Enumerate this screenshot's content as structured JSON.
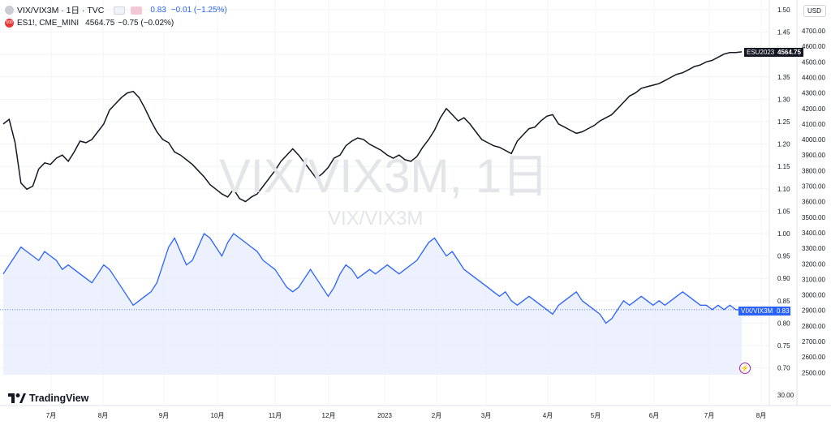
{
  "legend": {
    "main_symbol": "VIX/VIX3M · 1日 · TVC",
    "main_value": "0.83",
    "main_change": "−0.01 (−1.25%)",
    "compare_symbol": "ES1!, CME_MINI",
    "compare_value": "4564.75",
    "compare_change": "−0.75 (−0.02%)"
  },
  "currency_selector": "USD",
  "watermark": {
    "big": "VIX/VIX3M, 1日",
    "small": "VIX/VIX3M"
  },
  "labels": {
    "es_name": "ESU2023",
    "es_value": "4564.75",
    "vix_name": "VIX/VIX3M",
    "vix_value": "0.83"
  },
  "logo_text": "TradingView",
  "colors": {
    "es_line": "#131722",
    "vix_line": "#2962ff",
    "vix_fill": "#e3ebfd"
  },
  "chart_data": {
    "type": "line",
    "title": "",
    "x_ticks": [
      "7月",
      "8月",
      "9月",
      "10月",
      "11月",
      "12月",
      "2023",
      "2月",
      "3月",
      "4月",
      "5月",
      "6月",
      "7月",
      "8月"
    ],
    "y_left_axis": {
      "ticks": [
        "1.50",
        "1.45",
        "1.40",
        "1.35",
        "1.30",
        "1.25",
        "1.20",
        "1.15",
        "1.10",
        "1.05",
        "1.00",
        "0.95",
        "0.90",
        "0.85",
        "0.80",
        "0.75",
        "0.70"
      ],
      "range": [
        0.68,
        1.51
      ]
    },
    "y_right_axis": {
      "ticks": [
        "4700.00",
        "4600.00",
        "4500.00",
        "4400.00",
        "4300.00",
        "4200.00",
        "4100.00",
        "4000.00",
        "3900.00",
        "3800.00",
        "3700.00",
        "3600.00",
        "3500.00",
        "3400.00",
        "3300.00",
        "3200.00",
        "3100.00",
        "3000.00",
        "2900.00",
        "2800.00",
        "2700.00",
        "2600.00",
        "2500.00"
      ],
      "extra_tick": "30.00",
      "range": [
        2400,
        4750
      ]
    },
    "series": [
      {
        "name": "ES1!, CME_MINI",
        "axis": "right",
        "values": [
          4100,
          4130,
          3980,
          3720,
          3680,
          3700,
          3810,
          3850,
          3840,
          3880,
          3900,
          3860,
          3920,
          3990,
          3980,
          4000,
          4050,
          4100,
          4190,
          4230,
          4270,
          4300,
          4310,
          4270,
          4200,
          4120,
          4050,
          4000,
          3980,
          3920,
          3900,
          3870,
          3840,
          3800,
          3760,
          3710,
          3680,
          3650,
          3630,
          3680,
          3620,
          3600,
          3630,
          3650,
          3700,
          3750,
          3800,
          3860,
          3900,
          3940,
          3900,
          3850,
          3800,
          3750,
          3780,
          3820,
          3880,
          3900,
          3960,
          3990,
          4010,
          4000,
          3970,
          3950,
          3930,
          3900,
          3880,
          3900,
          3870,
          3860,
          3890,
          3950,
          4000,
          4060,
          4140,
          4200,
          4160,
          4120,
          4140,
          4100,
          4050,
          4000,
          3980,
          3960,
          3950,
          3930,
          3910,
          3990,
          4030,
          4070,
          4080,
          4120,
          4150,
          4160,
          4100,
          4080,
          4060,
          4040,
          4050,
          4070,
          4090,
          4120,
          4140,
          4160,
          4200,
          4240,
          4280,
          4300,
          4330,
          4340,
          4350,
          4360,
          4380,
          4400,
          4420,
          4430,
          4450,
          4470,
          4480,
          4500,
          4510,
          4530,
          4550,
          4560,
          4560,
          4565
        ]
      },
      {
        "name": "VIX/VIX3M",
        "axis": "left",
        "values": [
          0.91,
          0.93,
          0.95,
          0.97,
          0.96,
          0.95,
          0.94,
          0.96,
          0.95,
          0.94,
          0.92,
          0.93,
          0.92,
          0.91,
          0.9,
          0.89,
          0.91,
          0.93,
          0.92,
          0.9,
          0.88,
          0.86,
          0.84,
          0.85,
          0.86,
          0.87,
          0.89,
          0.93,
          0.97,
          0.99,
          0.96,
          0.93,
          0.94,
          0.97,
          1.0,
          0.99,
          0.97,
          0.95,
          0.98,
          1.0,
          0.99,
          0.98,
          0.97,
          0.96,
          0.94,
          0.93,
          0.92,
          0.9,
          0.88,
          0.87,
          0.88,
          0.9,
          0.92,
          0.9,
          0.88,
          0.86,
          0.88,
          0.91,
          0.93,
          0.92,
          0.9,
          0.91,
          0.92,
          0.91,
          0.92,
          0.93,
          0.92,
          0.91,
          0.92,
          0.93,
          0.94,
          0.96,
          0.98,
          0.99,
          0.97,
          0.95,
          0.96,
          0.94,
          0.92,
          0.91,
          0.9,
          0.89,
          0.88,
          0.87,
          0.86,
          0.87,
          0.85,
          0.84,
          0.85,
          0.86,
          0.85,
          0.84,
          0.83,
          0.82,
          0.84,
          0.85,
          0.86,
          0.87,
          0.85,
          0.84,
          0.83,
          0.82,
          0.8,
          0.81,
          0.83,
          0.85,
          0.84,
          0.85,
          0.86,
          0.85,
          0.84,
          0.85,
          0.84,
          0.85,
          0.86,
          0.87,
          0.86,
          0.85,
          0.84,
          0.84,
          0.83,
          0.84,
          0.83,
          0.84,
          0.83,
          0.83
        ]
      }
    ]
  }
}
